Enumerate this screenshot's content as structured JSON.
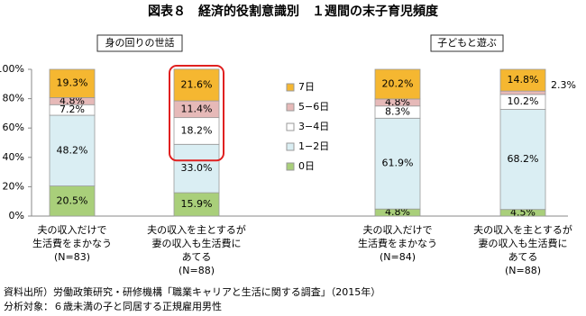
{
  "chart_data": {
    "type": "stacked_bar",
    "title": "図表８　経済的役割意識別　１週間の末子育児頻度",
    "groups": [
      "身の回りの世話",
      "子どもと遊ぶ"
    ],
    "categories": [
      [
        "夫の収入だけで",
        "生活費をまかなう"
      ],
      [
        "夫の収入を主とするが",
        "妻の収入も生活費に",
        "あてる"
      ],
      [
        "夫の収入だけで",
        "生活費をまかなう"
      ],
      [
        "夫の収入を主とするが",
        "妻の収入も生活費に",
        "あてる"
      ]
    ],
    "n_labels": [
      "(N=83)",
      "(N=88)",
      "(N=84)",
      "(N=88)"
    ],
    "series": [
      {
        "name": "0日",
        "color": "#a9cf7a",
        "values": [
          20.5,
          15.9,
          4.8,
          4.5
        ],
        "value_labels": [
          "20.5%",
          "15.9%",
          "4.8%",
          "4.5%"
        ]
      },
      {
        "name": "1−2日",
        "color": "#daeef3",
        "values": [
          48.2,
          33.0,
          61.9,
          68.2
        ],
        "value_labels": [
          "48.2%",
          "33.0%",
          "61.9%",
          "68.2%"
        ]
      },
      {
        "name": "3−4日",
        "color": "#ffffff",
        "values": [
          7.2,
          18.2,
          8.3,
          10.2
        ],
        "value_labels": [
          "7.2%",
          "18.2%",
          "8.3%",
          "10.2%"
        ]
      },
      {
        "name": "5−6日",
        "color": "#e6b9b8",
        "values": [
          4.8,
          11.4,
          4.8,
          2.3
        ],
        "value_labels": [
          "4.8%",
          "11.4%",
          "4.8%",
          "2.3%"
        ]
      },
      {
        "name": "7日",
        "color": "#f5b731",
        "values": [
          19.3,
          21.6,
          20.2,
          14.8
        ],
        "value_labels": [
          "19.3%",
          "21.6%",
          "20.2%",
          "14.8%"
        ]
      }
    ],
    "ylim": [
      0,
      100
    ],
    "yticks": [
      {
        "value": 0,
        "label": "0%"
      },
      {
        "value": 20,
        "label": "20%"
      },
      {
        "value": 40,
        "label": "40%"
      },
      {
        "value": 60,
        "label": "60%"
      },
      {
        "value": 80,
        "label": "80%"
      },
      {
        "value": 100,
        "label": "100%"
      }
    ],
    "sources": [
      "資料出所）労働政策研究・研修機構「職業キャリアと生活に関する調査」（2015年）",
      "分析対象：６歳未満の子と同居する正規雇用男性"
    ]
  }
}
